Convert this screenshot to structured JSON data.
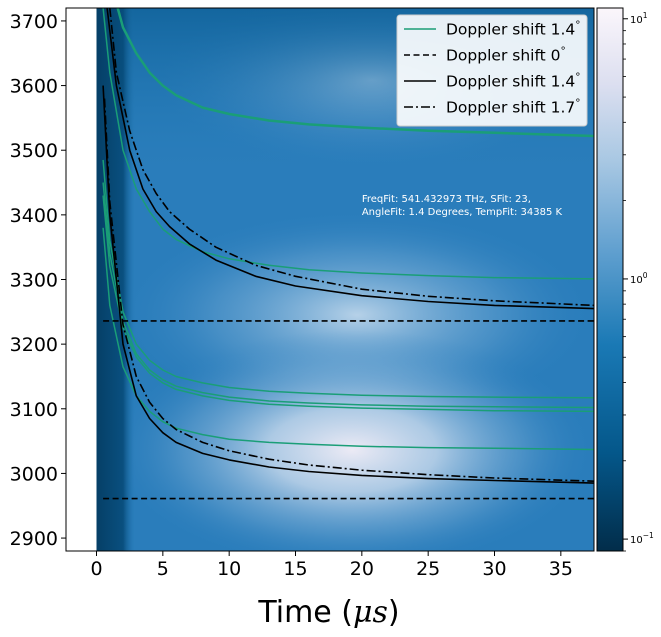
{
  "chart_data": {
    "type": "line",
    "background": "heatmap",
    "xlabel": "Time (μs)",
    "ylabel": "",
    "xlim": [
      -2.3,
      37.5
    ],
    "ylim": [
      2880,
      3720
    ],
    "x_ticks": [
      0,
      5,
      10,
      15,
      20,
      25,
      30,
      35
    ],
    "y_ticks": [
      2900,
      3000,
      3100,
      3200,
      3300,
      3400,
      3500,
      3600,
      3700
    ],
    "heatmap_x_range": [
      0,
      37.5
    ],
    "colorbar": {
      "scale": "log",
      "min": 0.09,
      "max": 11,
      "ticks": [
        {
          "value": 0.1,
          "base": "10",
          "exp": "−1"
        },
        {
          "value": 1,
          "base": "10",
          "exp": "0"
        },
        {
          "value": 10,
          "base": "10",
          "exp": "1"
        }
      ]
    },
    "annotation": {
      "lines": [
        "FreqFit: 541.432973 THz, SFit: 23,",
        "AngleFit: 1.4 Degrees, TempFit: 34385 K"
      ],
      "x": 20,
      "y": 3420
    },
    "legend": {
      "position": "upper right",
      "entries": [
        {
          "label": "Doppler shift 1.4°",
          "color": "#1a9e77",
          "style": "solid"
        },
        {
          "label": "Doppler shift 0°",
          "color": "#000000",
          "style": "dashed"
        },
        {
          "label": "Doppler shift 1.4°",
          "color": "#000000",
          "style": "solid"
        },
        {
          "label": "Doppler shift 1.7°",
          "color": "#000000",
          "style": "dashdot"
        }
      ]
    },
    "series": [
      {
        "color": "#1a9e77",
        "style": "solid",
        "width": 2.5,
        "x": [
          1.6,
          2,
          3,
          4,
          5,
          6,
          8,
          10,
          13,
          16,
          20,
          25,
          30,
          37.5
        ],
        "y": [
          3720,
          3690,
          3650,
          3620,
          3600,
          3585,
          3566,
          3556,
          3546,
          3540,
          3535,
          3530,
          3527,
          3522
        ]
      },
      {
        "color": "#1a9e77",
        "style": "solid",
        "width": 1.5,
        "x": [
          0.5,
          1,
          2,
          3,
          4,
          5,
          6,
          8,
          10,
          13,
          16,
          20,
          25,
          30,
          37.5
        ],
        "y": [
          3720,
          3620,
          3500,
          3440,
          3405,
          3378,
          3362,
          3343,
          3332,
          3322,
          3315,
          3310,
          3306,
          3303,
          3301
        ]
      },
      {
        "color": "#1a9e77",
        "style": "solid",
        "width": 1.5,
        "x": [
          0.5,
          1,
          2,
          3,
          4,
          5,
          6,
          8,
          10,
          13,
          16,
          20,
          25,
          30,
          37.5
        ],
        "y": [
          3485,
          3360,
          3250,
          3200,
          3175,
          3160,
          3150,
          3140,
          3133,
          3127,
          3124,
          3121,
          3119,
          3118,
          3117
        ]
      },
      {
        "color": "#1a9e77",
        "style": "solid",
        "width": 1.5,
        "x": [
          0.5,
          1,
          2,
          3,
          4,
          5,
          6,
          8,
          10,
          13,
          16,
          20,
          25,
          30,
          37.5
        ],
        "y": [
          3450,
          3340,
          3235,
          3185,
          3160,
          3145,
          3135,
          3125,
          3118,
          3112,
          3109,
          3106,
          3104,
          3103,
          3102
        ]
      },
      {
        "color": "#1a9e77",
        "style": "solid",
        "width": 1.5,
        "x": [
          0.5,
          1,
          2,
          3,
          4,
          5,
          6,
          8,
          10,
          13,
          16,
          20,
          25,
          30,
          37.5
        ],
        "y": [
          3430,
          3320,
          3225,
          3180,
          3155,
          3140,
          3130,
          3120,
          3113,
          3107,
          3104,
          3101,
          3099,
          3097,
          3096
        ]
      },
      {
        "color": "#1a9e77",
        "style": "solid",
        "width": 1.5,
        "x": [
          0.5,
          1,
          2,
          3,
          4,
          5,
          6,
          8,
          10,
          13,
          16,
          20,
          25,
          30,
          37.5
        ],
        "y": [
          3380,
          3260,
          3165,
          3120,
          3096,
          3080,
          3070,
          3060,
          3053,
          3048,
          3045,
          3042,
          3040,
          3039,
          3037
        ]
      },
      {
        "color": "#000000",
        "style": "solid",
        "width": 1.6,
        "x": [
          0.8,
          1.5,
          2.5,
          3.5,
          4.5,
          5.5,
          7,
          9,
          12,
          15,
          20,
          25,
          30,
          37.5
        ],
        "y": [
          3720,
          3600,
          3500,
          3440,
          3405,
          3382,
          3355,
          3330,
          3305,
          3290,
          3275,
          3266,
          3260,
          3255
        ]
      },
      {
        "color": "#000000",
        "style": "solid",
        "width": 1.6,
        "x": [
          0.5,
          1,
          2,
          3,
          4,
          5,
          6,
          8,
          10,
          13,
          16,
          20,
          25,
          30,
          37.5
        ],
        "y": [
          3600,
          3400,
          3200,
          3120,
          3085,
          3063,
          3048,
          3031,
          3021,
          3010,
          3003,
          2997,
          2992,
          2989,
          2985
        ]
      },
      {
        "color": "#000000",
        "style": "dashed",
        "width": 1.6,
        "x": [
          0.5,
          37.5
        ],
        "y": [
          3236,
          3236
        ]
      },
      {
        "color": "#000000",
        "style": "dashed",
        "width": 1.6,
        "x": [
          0.5,
          37.5
        ],
        "y": [
          2961,
          2961
        ]
      },
      {
        "color": "#000000",
        "style": "dashdot",
        "width": 1.6,
        "x": [
          1,
          1.5,
          2.5,
          3.5,
          4.5,
          5.5,
          7,
          9,
          12,
          15,
          20,
          25,
          30,
          37.5
        ],
        "y": [
          3720,
          3620,
          3530,
          3470,
          3433,
          3405,
          3378,
          3350,
          3322,
          3305,
          3285,
          3274,
          3267,
          3260
        ]
      },
      {
        "color": "#000000",
        "style": "dashdot",
        "width": 1.6,
        "x": [
          0.6,
          1,
          2,
          3,
          4,
          5,
          6,
          8,
          10,
          13,
          16,
          20,
          25,
          30,
          37.5
        ],
        "y": [
          3580,
          3420,
          3230,
          3150,
          3110,
          3085,
          3068,
          3048,
          3035,
          3022,
          3013,
          3005,
          2998,
          2993,
          2988
        ]
      }
    ]
  }
}
